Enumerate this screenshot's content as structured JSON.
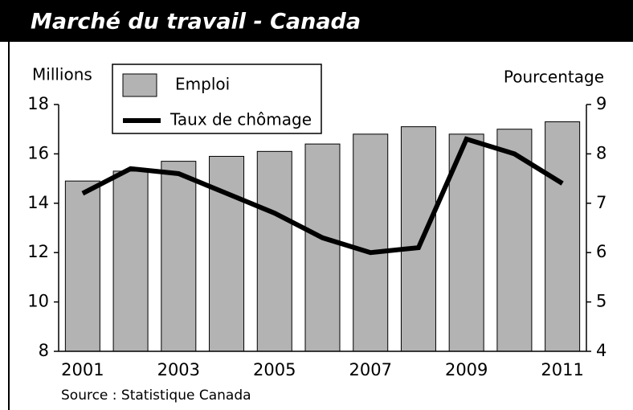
{
  "chart_data": {
    "type": "bar",
    "title": "Marché du travail - Canada",
    "ylabel": "Millions",
    "y2label": "Pourcentage",
    "source": "Source : Statistique Canada",
    "categories": [
      "2001",
      null,
      "2003",
      null,
      "2005",
      null,
      "2007",
      null,
      "2009",
      null,
      "2011"
    ],
    "series": [
      {
        "name": "Emploi",
        "type": "bar",
        "color": "#b3b3b3",
        "values": [
          14.9,
          15.3,
          15.7,
          15.9,
          16.1,
          16.4,
          16.8,
          17.1,
          16.8,
          17.0,
          17.3
        ]
      },
      {
        "name": "Taux de chômage",
        "type": "line",
        "axis": "y2",
        "color": "#000000",
        "values": [
          7.2,
          7.7,
          7.6,
          7.2,
          6.8,
          6.3,
          6.0,
          6.1,
          8.3,
          8.0,
          7.4
        ]
      }
    ],
    "ylim": [
      8,
      18
    ],
    "yticks": [
      8,
      10,
      12,
      14,
      16,
      18
    ],
    "y2lim": [
      4,
      9
    ],
    "y2ticks": [
      4,
      5,
      6,
      7,
      8,
      9
    ]
  }
}
